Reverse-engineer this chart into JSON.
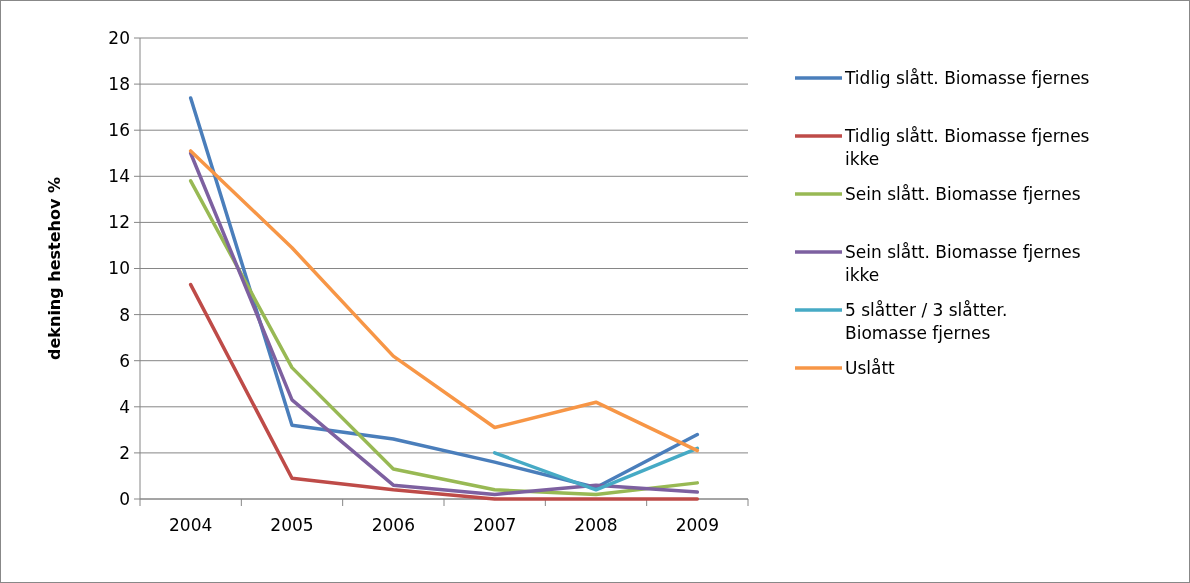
{
  "chart_data": {
    "type": "line",
    "ylabel": "dekning hestehov %",
    "categories": [
      "2004",
      "2005",
      "2006",
      "2007",
      "2008",
      "2009"
    ],
    "ylim": [
      0,
      20
    ],
    "yticks": [
      0,
      2,
      4,
      6,
      8,
      10,
      12,
      14,
      16,
      18,
      20
    ],
    "grid": "y",
    "legend": "right",
    "marker": "none",
    "line_style": "solid",
    "series": [
      {
        "name": "Tidlig slått. Biomasse fjernes",
        "color": "#4a7ebb",
        "values": [
          17.4,
          3.2,
          2.6,
          1.6,
          0.5,
          2.8
        ]
      },
      {
        "name": "Tidlig slått. Biomasse fjernes ikke",
        "color": "#be4b48",
        "values": [
          9.3,
          0.9,
          0.4,
          0,
          0,
          0
        ]
      },
      {
        "name": "Sein slått. Biomasse fjernes",
        "color": "#98b954",
        "values": [
          13.8,
          5.7,
          1.3,
          0.4,
          0.2,
          0.7
        ]
      },
      {
        "name": "Sein slått. Biomasse fjernes ikke",
        "color": "#7d60a0",
        "values": [
          15.0,
          4.3,
          0.6,
          0.2,
          0.6,
          0.3
        ]
      },
      {
        "name": "5 slåtter / 3 slåtter. Biomasse fjernes",
        "color": "#46aac5",
        "values": [
          null,
          null,
          null,
          2.0,
          0.4,
          2.2
        ]
      },
      {
        "name": "Uslått",
        "color": "#f79646",
        "values": [
          15.1,
          10.9,
          6.2,
          3.1,
          4.2,
          2.1
        ]
      }
    ]
  }
}
